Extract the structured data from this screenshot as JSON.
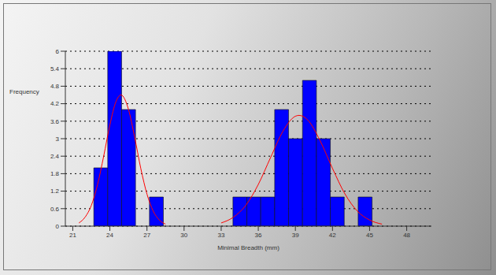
{
  "chart_data": {
    "type": "histogram",
    "x_label": "Minimal Breadth (mm)",
    "y_label": "Frequency",
    "bins": [
      22.7,
      23.825,
      24.95,
      26.075,
      27.2,
      28.325,
      29.45,
      30.575,
      31.7,
      32.825,
      33.95,
      35.075,
      36.2,
      37.325,
      38.45,
      39.575,
      40.7,
      41.825,
      42.95,
      44.075,
      45.2
    ],
    "counts": [
      2,
      6,
      4,
      0,
      1,
      0,
      0,
      0,
      0,
      0,
      1,
      1,
      1,
      4,
      3,
      5,
      3,
      1,
      0,
      1
    ],
    "color": "#0000ff",
    "series": [
      {
        "type": "line",
        "color": "#ff0000",
        "x": [
          21.5,
          22,
          22.5,
          23,
          23.5,
          24,
          24.5,
          24.9,
          25.5,
          26,
          26.5,
          27,
          27.5,
          28,
          28.5
        ],
        "values": [
          0.11,
          0.31,
          0.71,
          1.42,
          2.4,
          3.47,
          4.28,
          4.5,
          4.01,
          3.06,
          1.98,
          1.1,
          0.52,
          0.21,
          0.07
        ]
      },
      {
        "type": "line",
        "color": "#ff0000",
        "x": [
          33,
          34,
          35,
          36,
          37,
          38,
          39,
          39.3,
          40,
          41,
          42,
          43,
          44,
          45,
          46
        ],
        "values": [
          0.11,
          0.31,
          0.72,
          1.43,
          2.36,
          3.26,
          3.77,
          3.8,
          3.64,
          2.93,
          1.98,
          1.11,
          0.52,
          0.21,
          0.07
        ]
      }
    ],
    "xlim": [
      20.4,
      50
    ],
    "xticks": [
      21,
      24,
      27,
      30,
      33,
      36,
      39,
      42,
      45,
      48
    ],
    "ylim": [
      0,
      6
    ],
    "yticks": [
      0,
      0.6,
      1.2,
      1.8,
      2.4,
      3,
      3.6,
      4.2,
      4.8,
      5.4,
      6
    ],
    "grid": true
  }
}
